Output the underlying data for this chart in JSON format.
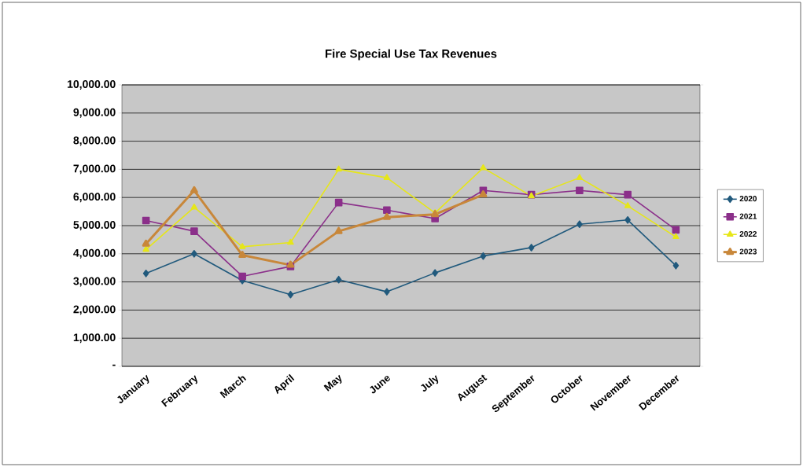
{
  "chart_data": {
    "type": "line",
    "title": "Fire Special Use Tax Revenues",
    "categories": [
      "January",
      "February",
      "March",
      "April",
      "May",
      "June",
      "July",
      "August",
      "September",
      "October",
      "November",
      "December"
    ],
    "series": [
      {
        "name": "2020",
        "color": "#215a7d",
        "marker": "diamond",
        "values": [
          3300,
          4000,
          3050,
          2550,
          3080,
          2650,
          3320,
          3920,
          4220,
          5050,
          5200,
          3580
        ]
      },
      {
        "name": "2021",
        "color": "#8b2f8a",
        "marker": "square",
        "values": [
          5180,
          4800,
          3200,
          3550,
          5820,
          5550,
          5250,
          6250,
          6100,
          6250,
          6100,
          4850
        ]
      },
      {
        "name": "2022",
        "color": "#e6e619",
        "marker": "triangle",
        "values": [
          4150,
          5650,
          4250,
          4400,
          7000,
          6700,
          5450,
          7050,
          6050,
          6700,
          5700,
          4600
        ]
      },
      {
        "name": "2023",
        "color": "#c8873a",
        "marker": "triangle",
        "values": [
          4350,
          6250,
          3950,
          3600,
          4800,
          5300,
          5400,
          6100,
          null,
          null,
          null,
          null
        ]
      }
    ],
    "ylim": [
      0,
      10000
    ],
    "yticks": [
      {
        "value": 0,
        "label": "-"
      },
      {
        "value": 1000,
        "label": "1,000.00"
      },
      {
        "value": 2000,
        "label": "2,000.00"
      },
      {
        "value": 3000,
        "label": "3,000.00"
      },
      {
        "value": 4000,
        "label": "4,000.00"
      },
      {
        "value": 5000,
        "label": "5,000.00"
      },
      {
        "value": 6000,
        "label": "6,000.00"
      },
      {
        "value": 7000,
        "label": "7,000.00"
      },
      {
        "value": 8000,
        "label": "8,000.00"
      },
      {
        "value": 9000,
        "label": "9,000.00"
      },
      {
        "value": 10000,
        "label": "10,000.00"
      }
    ],
    "grid": "y",
    "legend": "right",
    "line_style": "solid"
  }
}
